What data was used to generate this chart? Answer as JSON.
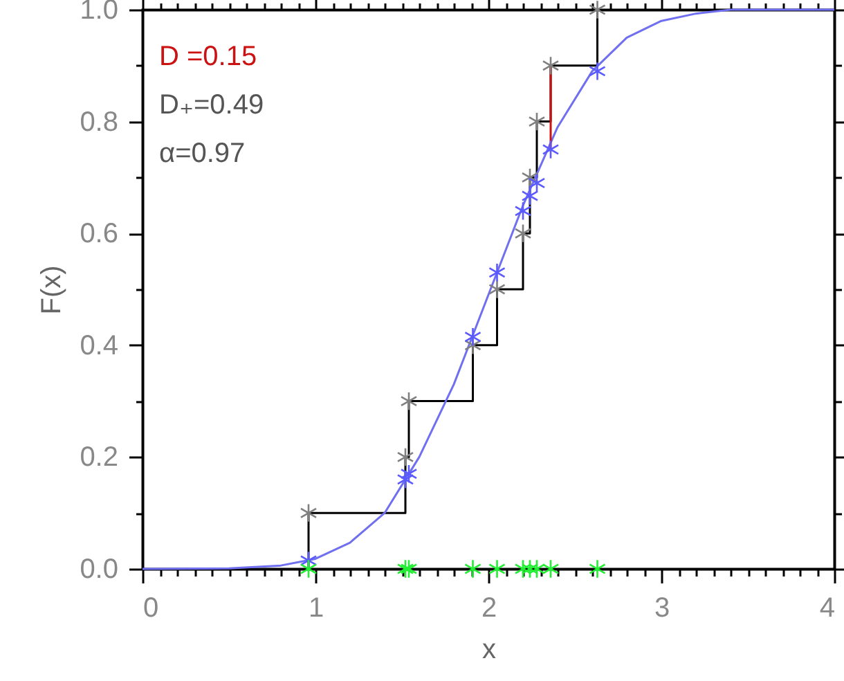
{
  "chart_data": {
    "type": "line",
    "xlabel": "x",
    "ylabel": "F(x)",
    "annotations": [
      "D₊=0.49",
      "α=0.97"
    ],
    "xlim": [
      0,
      4
    ],
    "ylim": [
      0,
      1
    ],
    "xticks": [
      0,
      {
        "value": 0.1,
        "label": null
      },
      {
        "value": 0.2,
        "label": null
      },
      {
        "value": 0.3,
        "label": null
      },
      {
        "value": 0.4,
        "label": null
      },
      {
        "value": 0.5,
        "label": null
      },
      {
        "value": 0.6,
        "label": null
      },
      {
        "value": 0.7,
        "label": null
      },
      {
        "value": 0.8,
        "label": null
      },
      {
        "value": 0.9,
        "label": null
      },
      1,
      {
        "value": 1.1,
        "label": null
      },
      {
        "value": 1.2,
        "label": null
      },
      {
        "value": 1.3,
        "label": null
      },
      {
        "value": 1.4,
        "label": null
      },
      {
        "value": 1.5,
        "label": null
      },
      {
        "value": 1.6,
        "label": null
      },
      {
        "value": 1.7,
        "label": null
      },
      {
        "value": 1.8,
        "label": null
      },
      {
        "value": 1.9,
        "label": null
      },
      2,
      {
        "value": 2.1,
        "label": null
      },
      {
        "value": 2.2,
        "label": null
      },
      {
        "value": 2.3,
        "label": null
      },
      {
        "value": 2.4,
        "label": null
      },
      {
        "value": 2.5,
        "label": null
      },
      {
        "value": 2.6,
        "label": null
      },
      {
        "value": 2.7,
        "label": null
      },
      {
        "value": 2.8,
        "label": null
      },
      {
        "value": 2.9,
        "label": null
      },
      3,
      {
        "value": 3.1,
        "label": null
      },
      {
        "value": 3.2,
        "label": null
      },
      {
        "value": 3.3,
        "label": null
      },
      {
        "value": 3.4,
        "label": null
      },
      {
        "value": 3.5,
        "label": null
      },
      {
        "value": 3.6,
        "label": null
      },
      {
        "value": 3.7,
        "label": null
      },
      {
        "value": 3.8,
        "label": null
      },
      {
        "value": 3.9,
        "label": null
      },
      4
    ],
    "yticks": [
      {
        "value": 0,
        "label": "0.0"
      },
      {
        "value": 0.1,
        "label": null
      },
      {
        "value": 0.2,
        "label": "0.2"
      },
      {
        "value": 0.3,
        "label": null
      },
      {
        "value": 0.4,
        "label": "0.4"
      },
      {
        "value": 0.5,
        "label": null
      },
      {
        "value": 0.6,
        "label": "0.6"
      },
      {
        "value": 0.7,
        "label": null
      },
      {
        "value": 0.8,
        "label": "0.8"
      },
      {
        "value": 0.9,
        "label": null
      },
      {
        "value": 1,
        "label": "1.0"
      }
    ],
    "grid": false,
    "series": [
      {
        "type": "step",
        "marker": "none",
        "color": "#000000",
        "x": [
          0.96,
          0.96,
          1.52,
          1.54,
          1.91,
          2.05,
          2.2,
          2.24,
          2.28,
          2.36,
          2.63
        ],
        "values": [
          0,
          0.1,
          0.2,
          0.3,
          0.4,
          0.5,
          0.6,
          0.7,
          0.8,
          0.9,
          1.0
        ]
      },
      {
        "marker": "none",
        "color": "#6f6fef",
        "x": [
          0,
          0.5,
          0.8,
          1.0,
          1.2,
          1.4,
          1.6,
          1.8,
          2.0,
          2.2,
          2.4,
          2.6,
          2.8,
          3.0,
          3.2,
          3.4,
          3.6,
          4.0
        ],
        "values": [
          0,
          0.001,
          0.006,
          0.018,
          0.047,
          0.1,
          0.2,
          0.33,
          0.49,
          0.65,
          0.79,
          0.89,
          0.95,
          0.98,
          0.993,
          1.0,
          1.0,
          1.0
        ]
      },
      {
        "marker": "none",
        "name": "D =0.15",
        "color": "#cc1111",
        "x": [
          2.36,
          2.36
        ],
        "values": [
          0.75,
          0.9
        ]
      },
      {
        "type": "scatter",
        "marker": "cross",
        "color": "#808080",
        "x": [
          0.96,
          1.52,
          1.54,
          1.91,
          2.05,
          2.2,
          2.24,
          2.28,
          2.36,
          2.63
        ],
        "values": [
          0.1,
          0.2,
          0.3,
          0.4,
          0.5,
          0.6,
          0.7,
          0.8,
          0.9,
          1.0
        ]
      },
      {
        "type": "scatter",
        "marker": "cross",
        "color": "#5a5aff",
        "x": [
          0.96,
          1.52,
          1.54,
          1.91,
          2.05,
          2.2,
          2.24,
          2.28,
          2.36,
          2.63
        ],
        "values": [
          0.015,
          0.16,
          0.17,
          0.415,
          0.53,
          0.64,
          0.667,
          0.69,
          0.75,
          0.89
        ]
      },
      {
        "type": "scatter",
        "marker": "cross",
        "color": "#22ee33",
        "x": [
          0.96,
          1.52,
          1.54,
          1.91,
          2.05,
          2.2,
          2.24,
          2.28,
          2.36,
          2.63
        ],
        "values": [
          0,
          0,
          0,
          0,
          0,
          0,
          0,
          0,
          0,
          0
        ]
      }
    ]
  }
}
